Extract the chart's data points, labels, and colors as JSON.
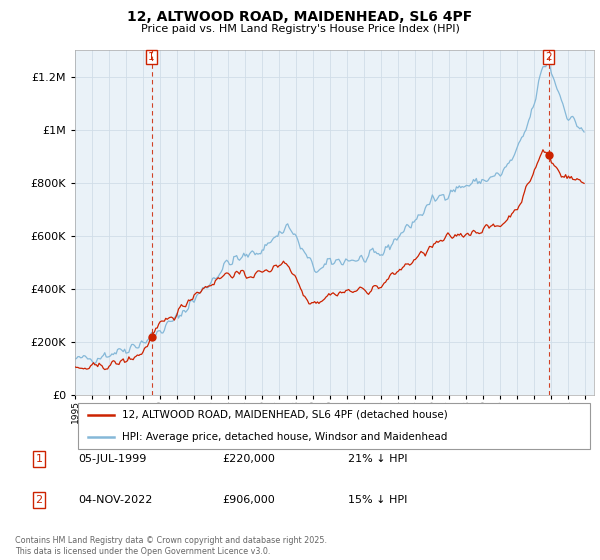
{
  "title_line1": "12, ALTWOOD ROAD, MAIDENHEAD, SL6 4PF",
  "title_line2": "Price paid vs. HM Land Registry's House Price Index (HPI)",
  "hpi_label": "HPI: Average price, detached house, Windsor and Maidenhead",
  "property_label": "12, ALTWOOD ROAD, MAIDENHEAD, SL6 4PF (detached house)",
  "sale1_date": "05-JUL-1999",
  "sale1_price": "£220,000",
  "sale1_note": "21% ↓ HPI",
  "sale2_date": "04-NOV-2022",
  "sale2_price": "£906,000",
  "sale2_note": "15% ↓ HPI",
  "copyright": "Contains HM Land Registry data © Crown copyright and database right 2025.\nThis data is licensed under the Open Government Licence v3.0.",
  "hpi_color": "#85b8d8",
  "property_color": "#cc2200",
  "sale_marker_color": "#cc2200",
  "grid_color": "#d0dde8",
  "grid_bg": "#eaf2f8",
  "ylim": [
    0,
    1300000
  ],
  "yticks": [
    0,
    200000,
    400000,
    600000,
    800000,
    1000000,
    1200000
  ],
  "xlim_start": 1995.0,
  "xlim_end": 2025.5,
  "sale1_x": 1999.5,
  "sale1_y": 220000,
  "sale2_x": 2022.83,
  "sale2_y": 906000
}
